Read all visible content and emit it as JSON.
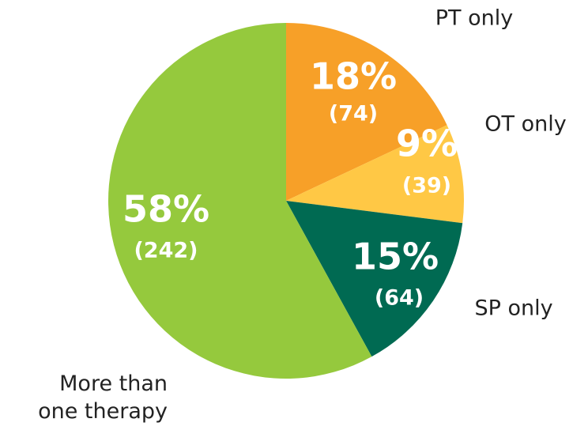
{
  "chart_data": {
    "type": "pie",
    "categories": [
      "PT only",
      "OT only",
      "SP only",
      "More than one therapy"
    ],
    "values": [
      18,
      9,
      15,
      58
    ],
    "value_labels": [
      "18%",
      "9%",
      "15%",
      "58%"
    ],
    "counts": [
      74,
      39,
      64,
      242
    ],
    "count_labels": [
      "(74)",
      "(39)",
      "(64)",
      "(242)"
    ],
    "colors": [
      "#f7a028",
      "#ffc845",
      "#006a52",
      "#95c93d"
    ]
  }
}
